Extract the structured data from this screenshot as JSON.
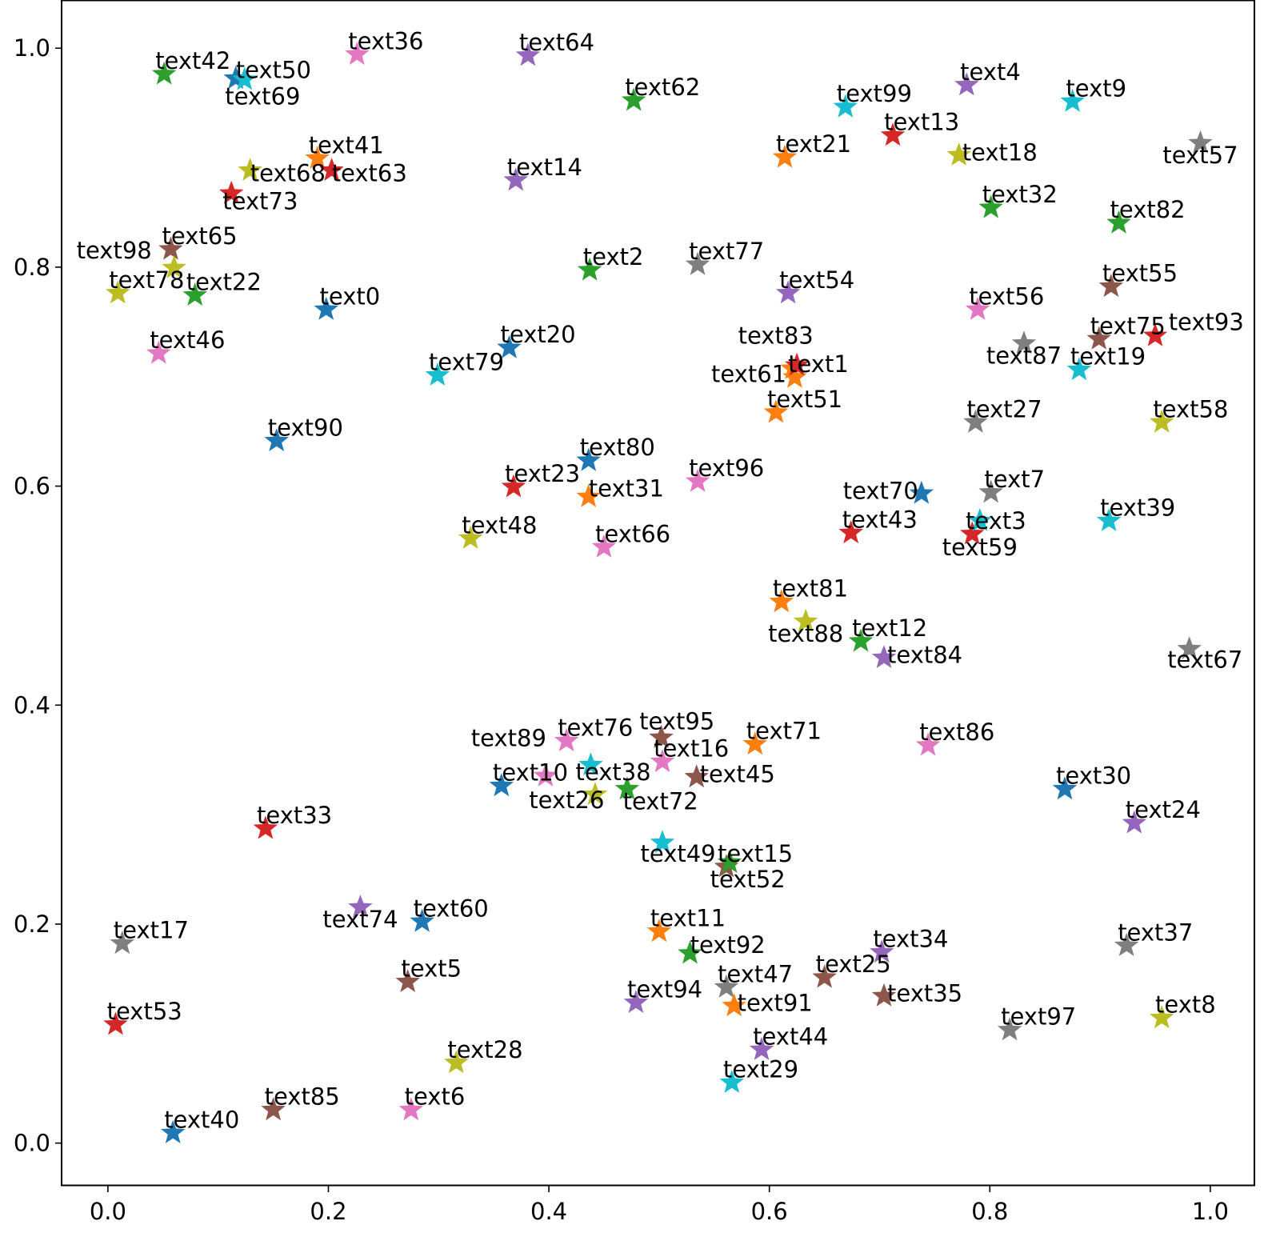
{
  "chart_data": {
    "type": "scatter",
    "title": "",
    "xlabel": "",
    "ylabel": "",
    "marker": "star",
    "xlim": [
      -0.042,
      1.04
    ],
    "ylim": [
      -0.039,
      1.044
    ],
    "grid": false,
    "xticks": [
      "0.0",
      "0.2",
      "0.4",
      "0.6",
      "0.8",
      "1.0"
    ],
    "yticks": [
      "0.0",
      "0.2",
      "0.4",
      "0.6",
      "0.8",
      "1.0"
    ],
    "colors": [
      "#1f77b4",
      "#ff7f0e",
      "#2ca02c",
      "#d62728",
      "#9467bd",
      "#8c564b",
      "#e377c2",
      "#7f7f7f",
      "#bcbd22",
      "#17becf"
    ],
    "points": [
      {
        "label": "text0",
        "x": 0.198,
        "y": 0.762
      },
      {
        "label": "text1",
        "x": 0.623,
        "y": 0.7
      },
      {
        "label": "text2",
        "x": 0.437,
        "y": 0.798
      },
      {
        "label": "text3",
        "x": 0.784,
        "y": 0.557
      },
      {
        "label": "text4",
        "x": 0.779,
        "y": 0.967
      },
      {
        "label": "text5",
        "x": 0.272,
        "y": 0.148
      },
      {
        "label": "text6",
        "x": 0.275,
        "y": 0.031
      },
      {
        "label": "text7",
        "x": 0.801,
        "y": 0.595
      },
      {
        "label": "text8",
        "x": 0.956,
        "y": 0.115
      },
      {
        "label": "text9",
        "x": 0.875,
        "y": 0.952
      },
      {
        "label": "text10",
        "x": 0.357,
        "y": 0.327
      },
      {
        "label": "text11",
        "x": 0.5,
        "y": 0.194
      },
      {
        "label": "text12",
        "x": 0.683,
        "y": 0.459
      },
      {
        "label": "text13",
        "x": 0.712,
        "y": 0.921
      },
      {
        "label": "text14",
        "x": 0.37,
        "y": 0.88
      },
      {
        "label": "text15",
        "x": 0.561,
        "y": 0.253
      },
      {
        "label": "text16",
        "x": 0.503,
        "y": 0.349
      },
      {
        "label": "text17",
        "x": 0.013,
        "y": 0.183
      },
      {
        "label": "text18",
        "x": 0.772,
        "y": 0.903
      },
      {
        "label": "text19",
        "x": 0.881,
        "y": 0.707
      },
      {
        "label": "text20",
        "x": 0.364,
        "y": 0.727
      },
      {
        "label": "text21",
        "x": 0.614,
        "y": 0.901
      },
      {
        "label": "text22",
        "x": 0.079,
        "y": 0.775
      },
      {
        "label": "text23",
        "x": 0.368,
        "y": 0.6
      },
      {
        "label": "text24",
        "x": 0.931,
        "y": 0.293
      },
      {
        "label": "text25",
        "x": 0.65,
        "y": 0.152
      },
      {
        "label": "text26",
        "x": 0.397,
        "y": 0.336
      },
      {
        "label": "text27",
        "x": 0.787,
        "y": 0.659
      },
      {
        "label": "text28",
        "x": 0.316,
        "y": 0.074
      },
      {
        "label": "text29",
        "x": 0.566,
        "y": 0.056
      },
      {
        "label": "text30",
        "x": 0.868,
        "y": 0.324
      },
      {
        "label": "text31",
        "x": 0.436,
        "y": 0.591
      },
      {
        "label": "text32",
        "x": 0.801,
        "y": 0.855
      },
      {
        "label": "text33",
        "x": 0.143,
        "y": 0.288
      },
      {
        "label": "text34",
        "x": 0.702,
        "y": 0.175
      },
      {
        "label": "text35",
        "x": 0.704,
        "y": 0.135
      },
      {
        "label": "text36",
        "x": 0.226,
        "y": 0.995
      },
      {
        "label": "text37",
        "x": 0.924,
        "y": 0.181
      },
      {
        "label": "text38",
        "x": 0.442,
        "y": 0.319
      },
      {
        "label": "text39",
        "x": 0.908,
        "y": 0.569
      },
      {
        "label": "text40",
        "x": 0.059,
        "y": 0.01
      },
      {
        "label": "text41",
        "x": 0.19,
        "y": 0.9
      },
      {
        "label": "text42",
        "x": 0.051,
        "y": 0.977
      },
      {
        "label": "text43",
        "x": 0.674,
        "y": 0.558
      },
      {
        "label": "text44",
        "x": 0.593,
        "y": 0.086
      },
      {
        "label": "text45",
        "x": 0.534,
        "y": 0.335
      },
      {
        "label": "text46",
        "x": 0.046,
        "y": 0.722
      },
      {
        "label": "text47",
        "x": 0.561,
        "y": 0.143
      },
      {
        "label": "text48",
        "x": 0.329,
        "y": 0.553
      },
      {
        "label": "text49",
        "x": 0.503,
        "y": 0.275
      },
      {
        "label": "text50",
        "x": 0.116,
        "y": 0.973
      },
      {
        "label": "text51",
        "x": 0.606,
        "y": 0.668
      },
      {
        "label": "text52",
        "x": 0.564,
        "y": 0.257
      },
      {
        "label": "text53",
        "x": 0.007,
        "y": 0.109
      },
      {
        "label": "text54",
        "x": 0.617,
        "y": 0.777
      },
      {
        "label": "text55",
        "x": 0.91,
        "y": 0.783
      },
      {
        "label": "text56",
        "x": 0.789,
        "y": 0.762
      },
      {
        "label": "text57",
        "x": 0.991,
        "y": 0.914
      },
      {
        "label": "text58",
        "x": 0.956,
        "y": 0.659
      },
      {
        "label": "text59",
        "x": 0.791,
        "y": 0.569
      },
      {
        "label": "text60",
        "x": 0.285,
        "y": 0.203
      },
      {
        "label": "text61",
        "x": 0.621,
        "y": 0.708
      },
      {
        "label": "text62",
        "x": 0.477,
        "y": 0.953
      },
      {
        "label": "text63",
        "x": 0.203,
        "y": 0.889
      },
      {
        "label": "text64",
        "x": 0.381,
        "y": 0.994
      },
      {
        "label": "text65",
        "x": 0.057,
        "y": 0.817
      },
      {
        "label": "text66",
        "x": 0.45,
        "y": 0.545
      },
      {
        "label": "text67",
        "x": 0.981,
        "y": 0.452
      },
      {
        "label": "text68",
        "x": 0.129,
        "y": 0.889
      },
      {
        "label": "text69",
        "x": 0.124,
        "y": 0.972
      },
      {
        "label": "text70",
        "x": 0.738,
        "y": 0.594
      },
      {
        "label": "text71",
        "x": 0.587,
        "y": 0.365
      },
      {
        "label": "text72",
        "x": 0.471,
        "y": 0.324
      },
      {
        "label": "text73",
        "x": 0.112,
        "y": 0.868
      },
      {
        "label": "text74",
        "x": 0.229,
        "y": 0.216
      },
      {
        "label": "text75",
        "x": 0.899,
        "y": 0.735
      },
      {
        "label": "text76",
        "x": 0.416,
        "y": 0.368
      },
      {
        "label": "text77",
        "x": 0.535,
        "y": 0.803
      },
      {
        "label": "text78",
        "x": 0.009,
        "y": 0.777
      },
      {
        "label": "text79",
        "x": 0.299,
        "y": 0.702
      },
      {
        "label": "text80",
        "x": 0.436,
        "y": 0.624
      },
      {
        "label": "text81",
        "x": 0.611,
        "y": 0.495
      },
      {
        "label": "text82",
        "x": 0.917,
        "y": 0.841
      },
      {
        "label": "text83",
        "x": 0.625,
        "y": 0.711
      },
      {
        "label": "text84",
        "x": 0.704,
        "y": 0.444
      },
      {
        "label": "text85",
        "x": 0.15,
        "y": 0.031
      },
      {
        "label": "text86",
        "x": 0.744,
        "y": 0.364
      },
      {
        "label": "text87",
        "x": 0.831,
        "y": 0.731
      },
      {
        "label": "text88",
        "x": 0.633,
        "y": 0.477
      },
      {
        "label": "text89",
        "x": 0.438,
        "y": 0.346
      },
      {
        "label": "text90",
        "x": 0.153,
        "y": 0.642
      },
      {
        "label": "text91",
        "x": 0.568,
        "y": 0.126
      },
      {
        "label": "text92",
        "x": 0.528,
        "y": 0.174
      },
      {
        "label": "text93",
        "x": 0.95,
        "y": 0.738
      },
      {
        "label": "text94",
        "x": 0.479,
        "y": 0.129
      },
      {
        "label": "text95",
        "x": 0.502,
        "y": 0.371
      },
      {
        "label": "text96",
        "x": 0.535,
        "y": 0.605
      },
      {
        "label": "text97",
        "x": 0.818,
        "y": 0.104
      },
      {
        "label": "text98",
        "x": 0.06,
        "y": 0.8
      },
      {
        "label": "text99",
        "x": 0.669,
        "y": 0.947
      }
    ]
  }
}
